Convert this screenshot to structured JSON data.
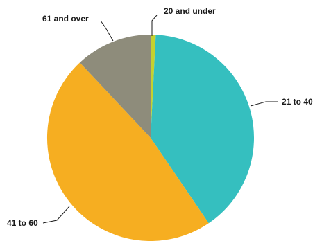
{
  "chart_data": {
    "type": "pie",
    "start_angle_deg": 0,
    "direction": "clockwise",
    "categories": [
      "20 and under",
      "21 to 40",
      "41 to 60",
      "61 and over"
    ],
    "values": [
      0.8,
      39.7,
      47.5,
      12.0
    ],
    "colors": [
      "#c5d12f",
      "#35bfbf",
      "#f6ae21",
      "#8e8c7b"
    ]
  }
}
